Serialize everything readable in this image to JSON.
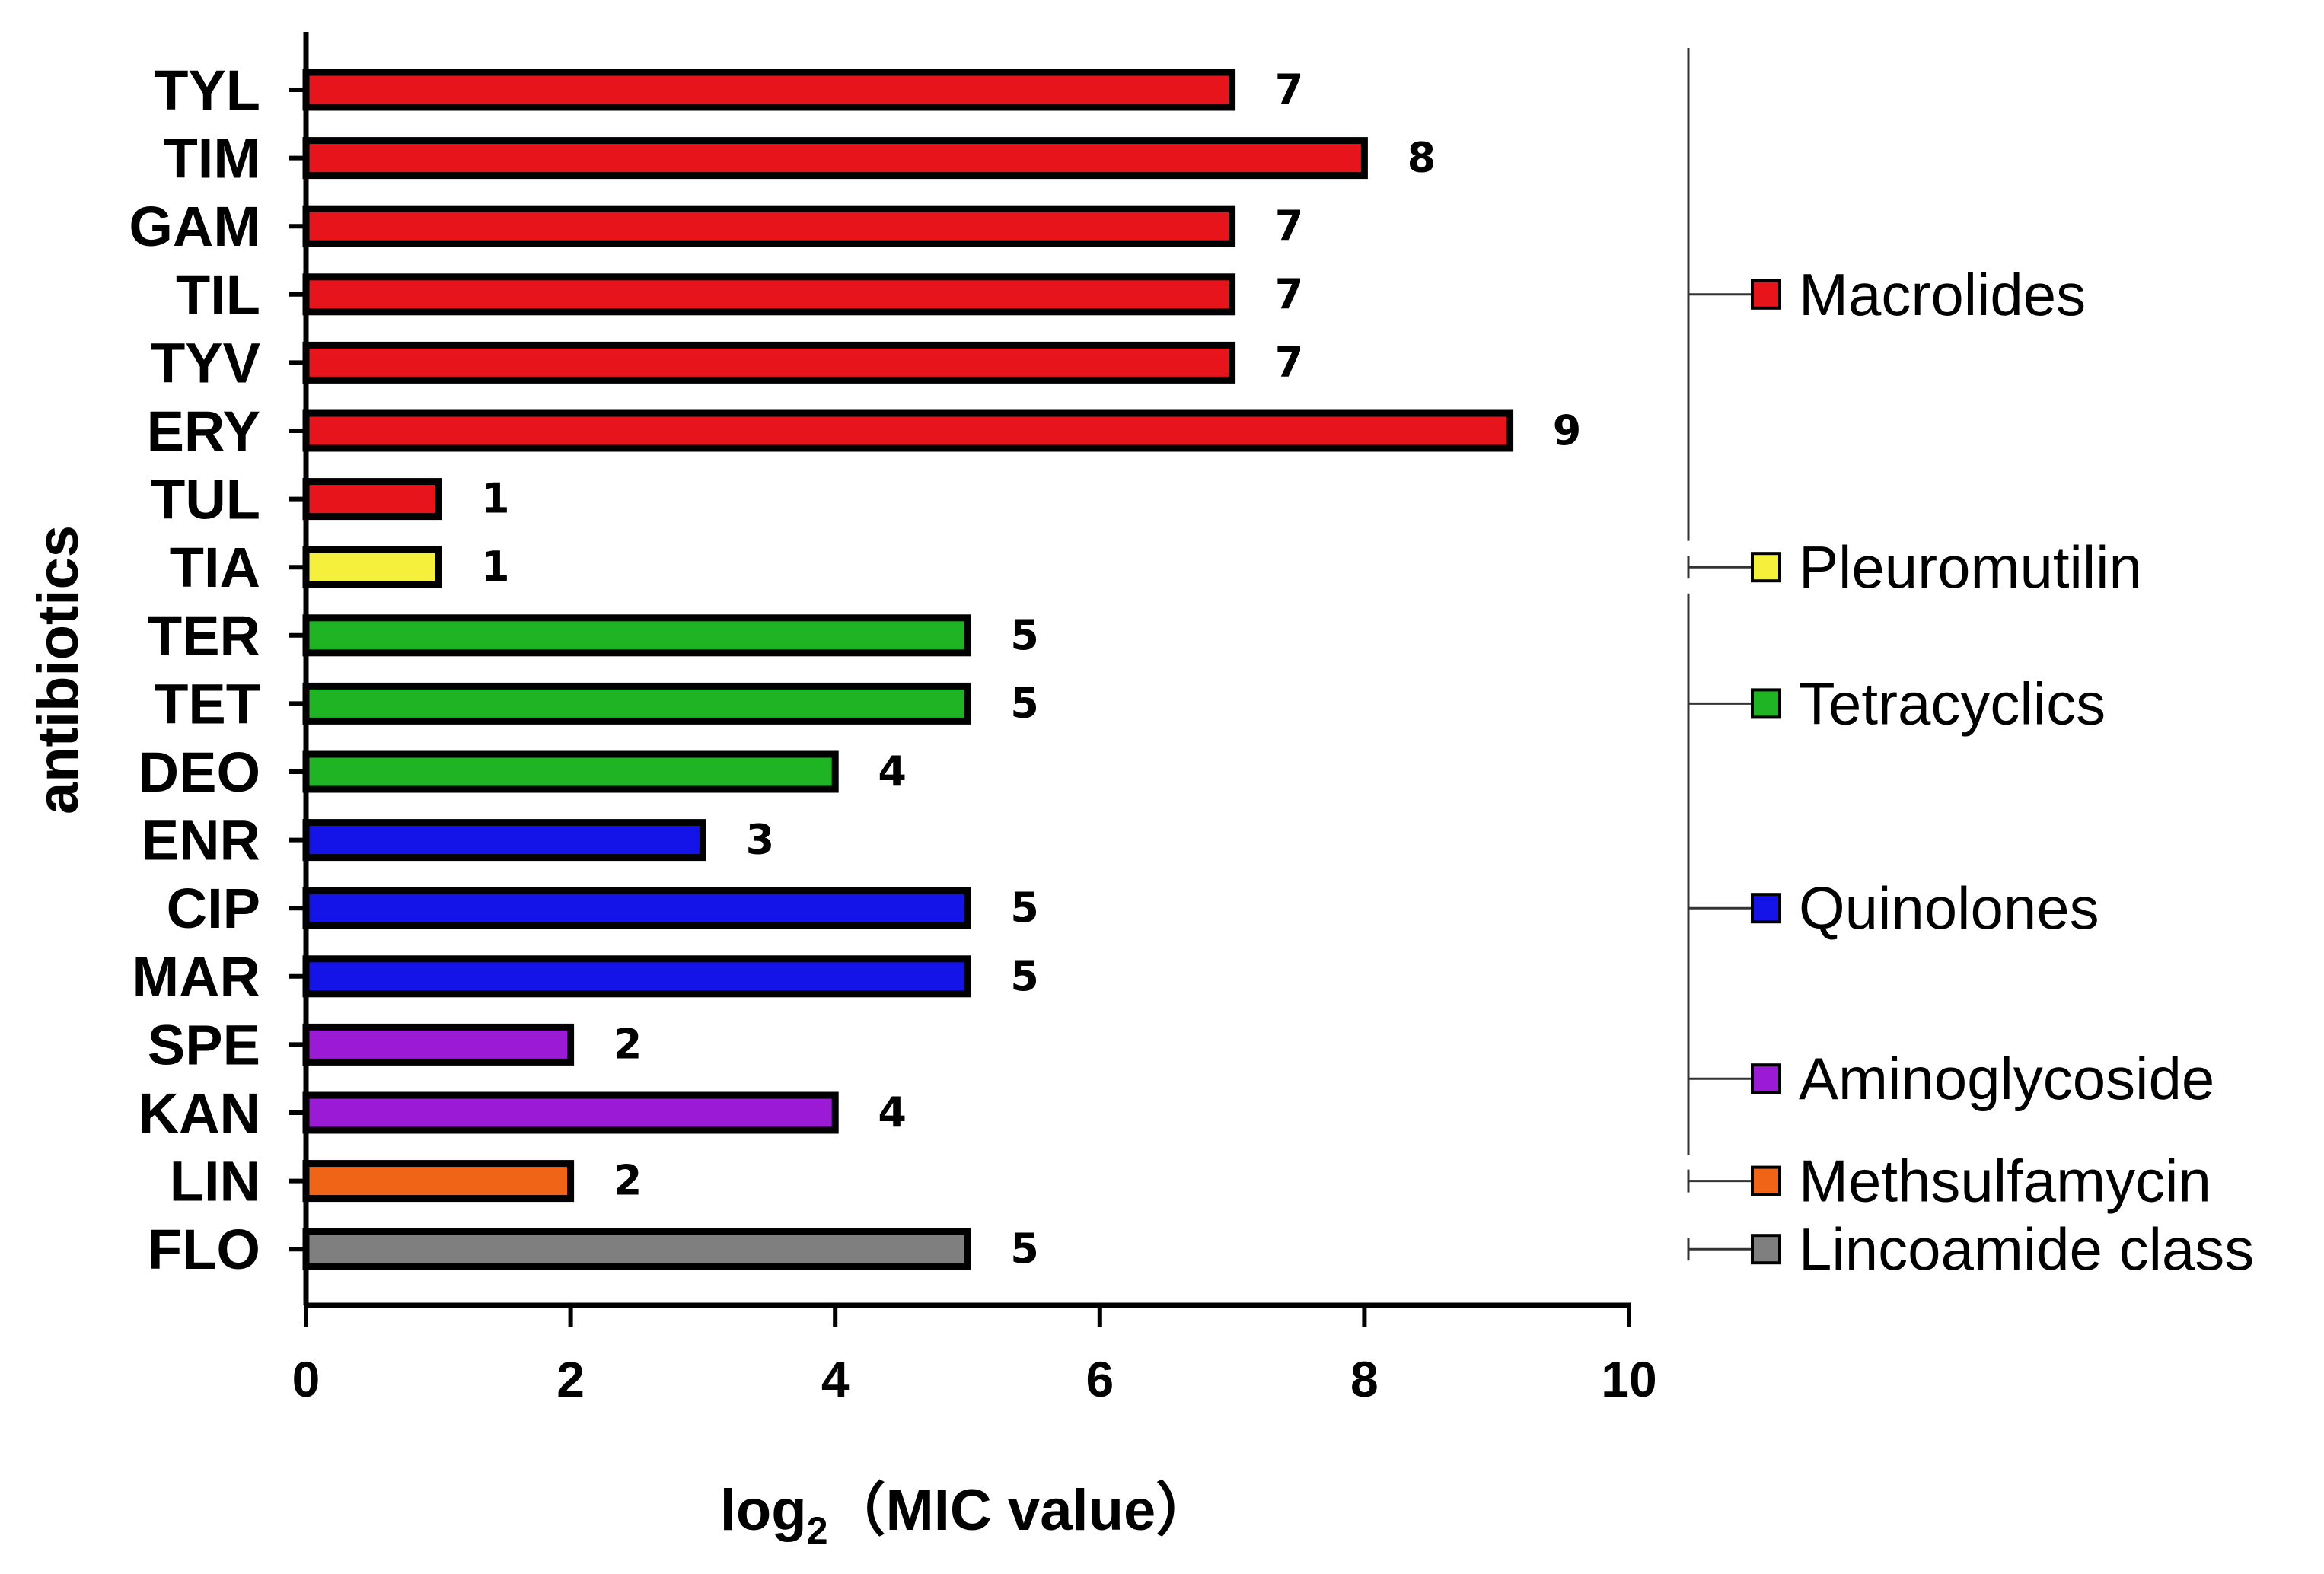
{
  "chart_data": {
    "type": "bar",
    "orientation": "horizontal",
    "title": "",
    "xlabel": {
      "main": "log",
      "sub": "2",
      "rest": "（MIC value）"
    },
    "ylabel": "antibiotics",
    "xlim": [
      0,
      10
    ],
    "xticks": [
      0,
      2,
      4,
      6,
      8,
      10
    ],
    "categories": [
      "TYL",
      "TIM",
      "GAM",
      "TIL",
      "TYV",
      "ERY",
      "TUL",
      "TIA",
      "TER",
      "TET",
      "DEO",
      "ENR",
      "CIP",
      "MAR",
      "SPE",
      "KAN",
      "LIN",
      "FLO"
    ],
    "values": [
      7,
      8,
      7,
      7,
      7,
      9.1,
      1,
      1,
      5,
      5,
      4,
      3,
      5,
      5,
      2,
      4,
      2,
      5
    ],
    "value_labels": [
      "7",
      "8",
      "7",
      "7",
      "7",
      "9",
      "1",
      "1",
      "5",
      "5",
      "4",
      "3",
      "5",
      "5",
      "2",
      "4",
      "2",
      "5"
    ],
    "groups": [
      {
        "name": "Macrolides",
        "color": "#e8141c",
        "start": 0,
        "end": 6
      },
      {
        "name": "Pleuromutilin",
        "color": "#f5f03c",
        "start": 7,
        "end": 7
      },
      {
        "name": "Tetracyclics",
        "color": "#1fb424",
        "start": 8,
        "end": 10
      },
      {
        "name": "Quinolones",
        "color": "#1414e8",
        "start": 11,
        "end": 13
      },
      {
        "name": "Aminoglycoside",
        "color": "#9b1ad6",
        "start": 14,
        "end": 15
      },
      {
        "name": "Methsulfamycin",
        "color": "#f06418",
        "start": 16,
        "end": 16
      },
      {
        "name": "Lincoamide class",
        "color": "#7f7f7f",
        "start": 17,
        "end": 17
      }
    ],
    "grid": false,
    "legend": "right"
  }
}
